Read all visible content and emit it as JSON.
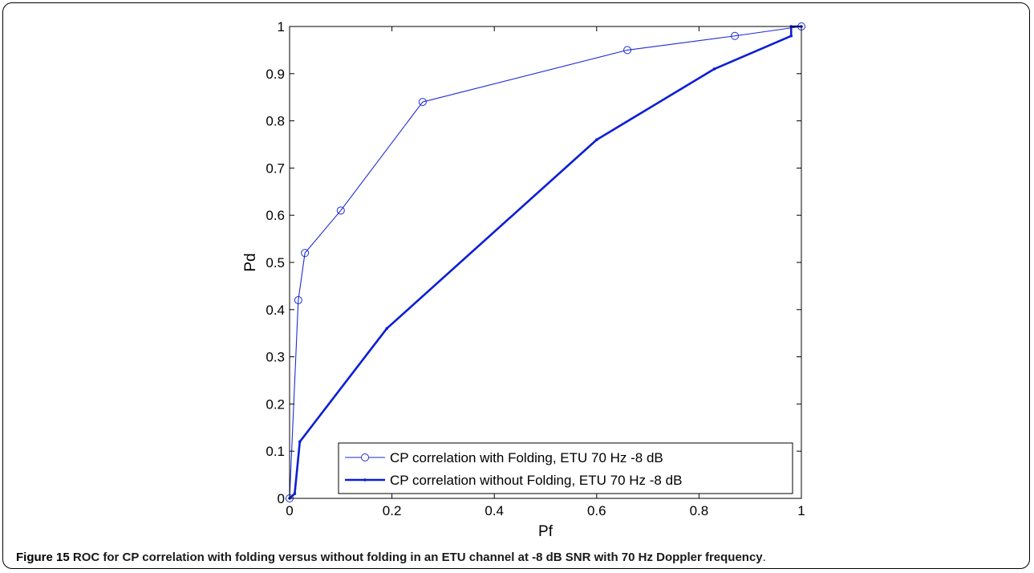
{
  "figure": {
    "label": "Figure 15",
    "caption": "ROC for CP correlation with folding versus without folding in an ETU channel at -8 dB SNR with 70 Hz Doppler frequency",
    "caption_end": "."
  },
  "chart_data": {
    "type": "line",
    "title": "",
    "xlabel": "Pf",
    "ylabel": "Pd",
    "xlim": [
      0,
      1
    ],
    "ylim": [
      0,
      1
    ],
    "xticks": [
      0,
      0.2,
      0.4,
      0.6,
      0.8,
      1
    ],
    "xtick_labels": [
      "0",
      "0.2",
      "0.4",
      "0.6",
      "0.8",
      "1"
    ],
    "yticks": [
      0,
      0.1,
      0.2,
      0.3,
      0.4,
      0.5,
      0.6,
      0.7,
      0.8,
      0.9,
      1
    ],
    "ytick_labels": [
      "0",
      "0.1",
      "0.2",
      "0.3",
      "0.4",
      "0.5",
      "0.6",
      "0.7",
      "0.8",
      "0.9",
      "1"
    ],
    "grid": false,
    "legend_position": "bottom-right",
    "series": [
      {
        "name": "CP correlation with Folding, ETU 70 Hz -8 dB",
        "color": "#1f2bd6",
        "marker": "circle",
        "line": "thin",
        "x": [
          0.0,
          0.017,
          0.03,
          0.1,
          0.26,
          0.66,
          0.87,
          1.0
        ],
        "y": [
          0.0,
          0.42,
          0.52,
          0.61,
          0.84,
          0.95,
          0.98,
          1.0
        ]
      },
      {
        "name": "CP correlation without Folding, ETU 70 Hz -8 dB",
        "color": "#0c1ed6",
        "marker": "dot",
        "line": "thick",
        "x": [
          0.0,
          0.01,
          0.02,
          0.19,
          0.6,
          0.83,
          0.98,
          0.98,
          1.0
        ],
        "y": [
          0.0,
          0.01,
          0.12,
          0.36,
          0.76,
          0.91,
          0.98,
          1.0,
          1.0
        ]
      }
    ]
  }
}
